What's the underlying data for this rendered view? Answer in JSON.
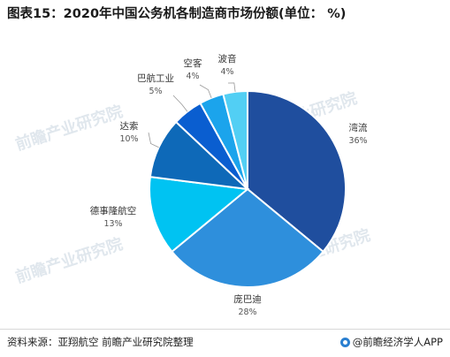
{
  "title": "图表15：2020年中国公务机各制造商市场份额(单位： %)",
  "watermark": "前瞻产业研究院",
  "footer": {
    "source": "资料来源：亚翔航空  前瞻产业研究院整理",
    "brand": "@前瞻经济学人APP"
  },
  "chart_data": {
    "type": "pie",
    "title": "图表15：2020年中国公务机各制造商市场份额(单位： %)",
    "unit": "%",
    "start_angle_deg": 0,
    "direction": "clockwise",
    "slices": [
      {
        "name": "湾流",
        "value": 36,
        "label": "36%",
        "color": "#1f4e9e"
      },
      {
        "name": "庞巴迪",
        "value": 28,
        "label": "28%",
        "color": "#2e8fdc"
      },
      {
        "name": "德事隆航空",
        "value": 13,
        "label": "13%",
        "color": "#00c3f2"
      },
      {
        "name": "达索",
        "value": 10,
        "label": "10%",
        "color": "#0e69b8"
      },
      {
        "name": "巴航工业",
        "value": 5,
        "label": "5%",
        "color": "#0a5ed0"
      },
      {
        "name": "空客",
        "value": 4,
        "label": "4%",
        "color": "#1ba4ec"
      },
      {
        "name": "波音",
        "value": 4,
        "label": "4%",
        "color": "#52cff4"
      }
    ]
  }
}
